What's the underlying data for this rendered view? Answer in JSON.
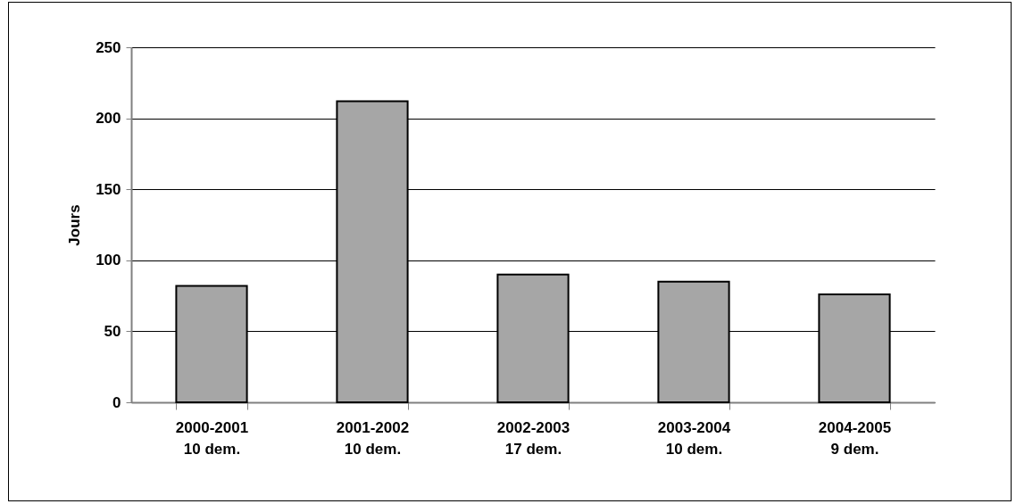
{
  "chart_data": {
    "type": "bar",
    "ylabel": "Jours",
    "categories": [
      "2000-2001\n10 dem.",
      "2001-2002\n10 dem.",
      "2002-2003\n17 dem.",
      "2003-2004\n10 dem.",
      "2004-2005\n9 dem."
    ],
    "values": [
      82,
      212,
      90,
      85,
      76
    ],
    "color": "#a6a6a6",
    "ylim": [
      0,
      250
    ],
    "yticks": [
      0,
      50,
      100,
      150,
      200,
      250
    ],
    "grid": "y"
  }
}
